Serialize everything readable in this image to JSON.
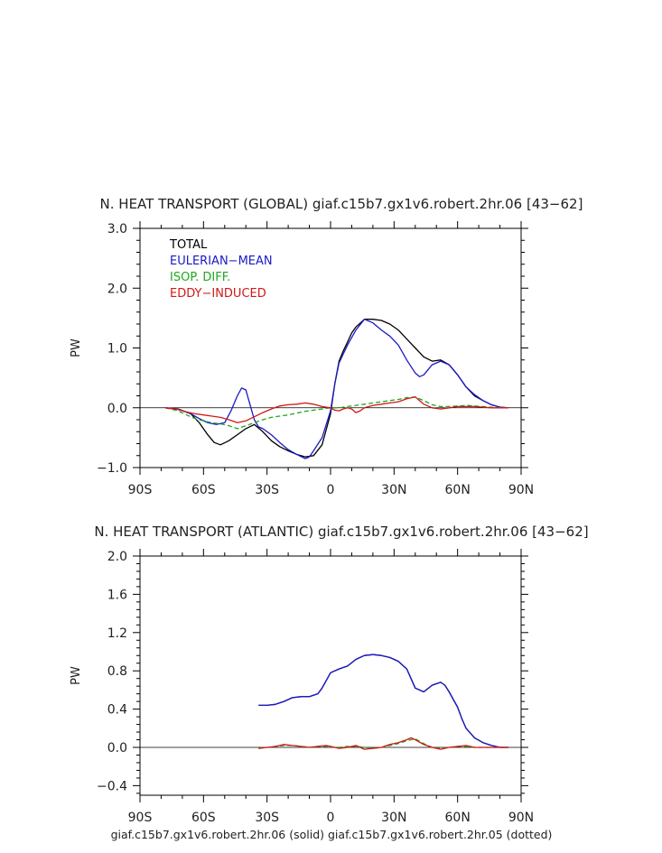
{
  "footer": "giaf.c15b7.gx1v6.robert.2hr.06 (solid) giaf.c15b7.gx1v6.robert.2hr.05 (dotted)",
  "chart_data": [
    {
      "type": "line",
      "title": "N. HEAT TRANSPORT (GLOBAL) giaf.c15b7.gx1v6.robert.2hr.06 [43−62]",
      "ylabel": "PW",
      "xlabel": "",
      "xlim": [
        -90,
        90
      ],
      "ylim": [
        -1.0,
        3.0
      ],
      "x_ticks": [
        -90,
        -60,
        -30,
        0,
        30,
        60,
        90
      ],
      "x_tick_labels": [
        "90S",
        "60S",
        "30S",
        "0",
        "30N",
        "60N",
        "90N"
      ],
      "y_ticks": [
        -1.0,
        0.0,
        1.0,
        2.0,
        3.0
      ],
      "y_tick_labels": [
        "−1.0",
        "0.0",
        "1.0",
        "2.0",
        "3.0"
      ],
      "zero_line": true,
      "grid": false,
      "legend_position": "top-left",
      "series": [
        {
          "name": "TOTAL",
          "color": "#000000",
          "dash": "",
          "x": [
            -78,
            -72,
            -66,
            -62,
            -58,
            -55,
            -52,
            -48,
            -44,
            -40,
            -36,
            -32,
            -28,
            -24,
            -20,
            -16,
            -12,
            -8,
            -4,
            0,
            2,
            4,
            6,
            8,
            10,
            12,
            16,
            20,
            24,
            28,
            32,
            36,
            40,
            44,
            48,
            52,
            56,
            60,
            64,
            68,
            72,
            76,
            80,
            84
          ],
          "y": [
            0.0,
            -0.02,
            -0.1,
            -0.25,
            -0.45,
            -0.58,
            -0.62,
            -0.55,
            -0.45,
            -0.35,
            -0.28,
            -0.4,
            -0.55,
            -0.65,
            -0.72,
            -0.78,
            -0.82,
            -0.8,
            -0.62,
            -0.1,
            0.4,
            0.78,
            0.95,
            1.1,
            1.25,
            1.35,
            1.48,
            1.48,
            1.46,
            1.4,
            1.3,
            1.15,
            1.0,
            0.85,
            0.78,
            0.8,
            0.72,
            0.55,
            0.35,
            0.2,
            0.12,
            0.05,
            0.01,
            0.0
          ]
        },
        {
          "name": "EULERIAN−MEAN",
          "color": "#1a1ac8",
          "dash": "",
          "x": [
            -78,
            -72,
            -66,
            -62,
            -58,
            -54,
            -50,
            -47,
            -44,
            -42,
            -40,
            -38,
            -36,
            -34,
            -32,
            -28,
            -24,
            -20,
            -16,
            -12,
            -10,
            -8,
            -4,
            0,
            2,
            4,
            8,
            12,
            16,
            20,
            24,
            28,
            32,
            36,
            40,
            42,
            44,
            48,
            52,
            56,
            60,
            64,
            68,
            72,
            76,
            80,
            84
          ],
          "y": [
            0.0,
            -0.02,
            -0.1,
            -0.18,
            -0.25,
            -0.28,
            -0.25,
            -0.05,
            0.2,
            0.33,
            0.3,
            0.05,
            -0.2,
            -0.32,
            -0.35,
            -0.45,
            -0.58,
            -0.7,
            -0.78,
            -0.85,
            -0.82,
            -0.72,
            -0.5,
            -0.05,
            0.4,
            0.75,
            1.05,
            1.3,
            1.48,
            1.42,
            1.3,
            1.2,
            1.05,
            0.8,
            0.58,
            0.52,
            0.55,
            0.72,
            0.78,
            0.72,
            0.55,
            0.35,
            0.22,
            0.12,
            0.05,
            0.01,
            0.0
          ]
        },
        {
          "name": "ISOP. DIFF.",
          "color": "#1ea81e",
          "dash": "5,3",
          "x": [
            -78,
            -72,
            -68,
            -64,
            -60,
            -56,
            -52,
            -48,
            -44,
            -40,
            -36,
            -32,
            -28,
            -24,
            -20,
            -16,
            -12,
            -8,
            -4,
            0,
            4,
            8,
            12,
            16,
            20,
            24,
            28,
            32,
            36,
            40,
            44,
            48,
            52,
            56,
            60,
            64,
            68,
            72,
            76,
            80,
            84
          ],
          "y": [
            0.0,
            -0.05,
            -0.12,
            -0.18,
            -0.22,
            -0.25,
            -0.27,
            -0.3,
            -0.35,
            -0.3,
            -0.25,
            -0.2,
            -0.16,
            -0.14,
            -0.12,
            -0.09,
            -0.06,
            -0.04,
            -0.02,
            0.0,
            0.0,
            0.02,
            0.04,
            0.06,
            0.08,
            0.1,
            0.12,
            0.14,
            0.17,
            0.18,
            0.12,
            0.05,
            0.02,
            0.02,
            0.03,
            0.04,
            0.03,
            0.02,
            0.01,
            0.0,
            0.0
          ]
        },
        {
          "name": "EDDY−INDUCED",
          "color": "#d01818",
          "dash": "",
          "x": [
            -78,
            -72,
            -68,
            -64,
            -60,
            -56,
            -52,
            -48,
            -44,
            -40,
            -36,
            -32,
            -28,
            -24,
            -20,
            -16,
            -12,
            -8,
            -4,
            0,
            2,
            4,
            6,
            8,
            10,
            12,
            14,
            16,
            20,
            24,
            28,
            32,
            36,
            40,
            44,
            48,
            52,
            56,
            60,
            64,
            68,
            72,
            76,
            80,
            84
          ],
          "y": [
            0.0,
            -0.03,
            -0.07,
            -0.1,
            -0.12,
            -0.14,
            -0.16,
            -0.2,
            -0.25,
            -0.22,
            -0.15,
            -0.08,
            -0.02,
            0.03,
            0.05,
            0.06,
            0.08,
            0.06,
            0.02,
            0.0,
            -0.04,
            -0.05,
            -0.02,
            0.0,
            -0.02,
            -0.08,
            -0.05,
            0.0,
            0.04,
            0.06,
            0.08,
            0.1,
            0.15,
            0.18,
            0.06,
            0.0,
            -0.02,
            0.0,
            0.02,
            0.02,
            0.02,
            0.01,
            0.0,
            0.0,
            0.0
          ]
        }
      ]
    },
    {
      "type": "line",
      "title": "N. HEAT TRANSPORT (ATLANTIC) giaf.c15b7.gx1v6.robert.2hr.06 [43−62]",
      "ylabel": "PW",
      "xlabel": "",
      "xlim": [
        -90,
        90
      ],
      "ylim": [
        -0.5,
        2.0
      ],
      "x_ticks": [
        -90,
        -60,
        -30,
        0,
        30,
        60,
        90
      ],
      "x_tick_labels": [
        "90S",
        "60S",
        "30S",
        "0",
        "30N",
        "60N",
        "90N"
      ],
      "y_ticks": [
        -0.4,
        0.0,
        0.4,
        0.8,
        1.2,
        1.6,
        2.0
      ],
      "y_tick_labels": [
        "−0.4",
        "0.0",
        "0.4",
        "0.8",
        "1.2",
        "1.6",
        "2.0"
      ],
      "zero_line": true,
      "grid": false,
      "series": [
        {
          "name": "",
          "color": "#000000",
          "dash": "",
          "x": [
            -34,
            -30,
            -26,
            -22,
            -18,
            -14,
            -10,
            -6,
            -4,
            -2,
            0,
            4,
            8,
            12,
            16,
            20,
            24,
            28,
            32,
            36,
            38,
            40,
            44,
            48,
            52,
            54,
            56,
            60,
            62,
            64,
            66,
            68,
            72,
            76,
            80,
            84
          ],
          "y": [
            0.44,
            0.44,
            0.45,
            0.48,
            0.52,
            0.53,
            0.53,
            0.56,
            0.62,
            0.7,
            0.78,
            0.82,
            0.85,
            0.92,
            0.96,
            0.97,
            0.96,
            0.94,
            0.9,
            0.82,
            0.72,
            0.62,
            0.58,
            0.65,
            0.68,
            0.65,
            0.58,
            0.42,
            0.3,
            0.2,
            0.15,
            0.1,
            0.05,
            0.02,
            0.0,
            0.0
          ]
        },
        {
          "name": "",
          "color": "#1a1ac8",
          "dash": "",
          "x": [
            -34,
            -30,
            -26,
            -22,
            -18,
            -14,
            -10,
            -6,
            -4,
            -2,
            0,
            4,
            8,
            12,
            16,
            20,
            24,
            28,
            32,
            36,
            38,
            40,
            44,
            48,
            52,
            54,
            56,
            60,
            62,
            64,
            66,
            68,
            72,
            76,
            80,
            84
          ],
          "y": [
            0.44,
            0.44,
            0.45,
            0.48,
            0.52,
            0.53,
            0.53,
            0.56,
            0.62,
            0.7,
            0.78,
            0.82,
            0.85,
            0.92,
            0.96,
            0.97,
            0.96,
            0.94,
            0.9,
            0.82,
            0.72,
            0.62,
            0.58,
            0.65,
            0.68,
            0.65,
            0.58,
            0.42,
            0.3,
            0.2,
            0.15,
            0.1,
            0.05,
            0.02,
            0.0,
            0.0
          ]
        },
        {
          "name": "",
          "color": "#1ea81e",
          "dash": "5,3",
          "x": [
            -34,
            -30,
            -26,
            -22,
            -18,
            -14,
            -10,
            -6,
            -2,
            0,
            4,
            8,
            12,
            16,
            20,
            24,
            28,
            32,
            36,
            40,
            44,
            48,
            52,
            56,
            60,
            64,
            68,
            72,
            76,
            80,
            84
          ],
          "y": [
            -0.01,
            0.0,
            0.01,
            0.02,
            0.02,
            0.01,
            0.0,
            0.01,
            0.01,
            0.0,
            0.0,
            0.01,
            0.01,
            0.0,
            -0.01,
            0.0,
            0.02,
            0.04,
            0.07,
            0.09,
            0.04,
            0.0,
            -0.01,
            0.0,
            0.01,
            0.01,
            0.0,
            0.0,
            0.0,
            0.0,
            0.0
          ]
        },
        {
          "name": "",
          "color": "#d01818",
          "dash": "",
          "x": [
            -34,
            -30,
            -26,
            -22,
            -18,
            -14,
            -10,
            -6,
            -2,
            0,
            4,
            8,
            12,
            16,
            20,
            24,
            28,
            32,
            36,
            38,
            40,
            44,
            48,
            52,
            56,
            60,
            64,
            68,
            72,
            76,
            80,
            84
          ],
          "y": [
            -0.01,
            0.0,
            0.01,
            0.03,
            0.02,
            0.01,
            0.0,
            0.01,
            0.02,
            0.01,
            -0.01,
            0.0,
            0.02,
            -0.02,
            -0.01,
            0.0,
            0.03,
            0.05,
            0.08,
            0.1,
            0.08,
            0.03,
            0.0,
            -0.02,
            0.0,
            0.01,
            0.02,
            0.0,
            0.0,
            0.0,
            0.0,
            0.0
          ]
        }
      ]
    }
  ]
}
